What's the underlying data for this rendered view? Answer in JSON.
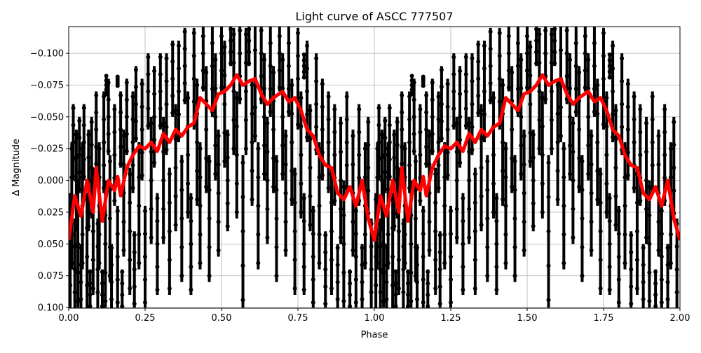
{
  "chart_data": {
    "type": "scatter",
    "title": "Light curve of ASCC 777507",
    "xlabel": "Phase",
    "ylabel": "Δ Magnitude",
    "xlim": [
      0.0,
      2.0
    ],
    "ylim": [
      0.1005,
      -0.121
    ],
    "y_inverted": true,
    "grid": true,
    "xticks": [
      "0.00",
      "0.25",
      "0.50",
      "0.75",
      "1.00",
      "1.25",
      "1.50",
      "1.75",
      "2.00"
    ],
    "xtick_values": [
      0,
      0.25,
      0.5,
      0.75,
      1,
      1.25,
      1.5,
      1.75,
      2
    ],
    "yticks": [
      "−0.100",
      "−0.075",
      "−0.050",
      "−0.025",
      "0.000",
      "0.025",
      "0.050",
      "0.075",
      "0.100"
    ],
    "ytick_values": [
      -0.1,
      -0.075,
      -0.05,
      -0.025,
      0,
      0.025,
      0.05,
      0.075,
      0.1
    ],
    "colors": {
      "points": "#000000",
      "model": "#ff0000",
      "grid": "#b0b0b0"
    },
    "points_note_phase_repeat": "phase 0–1 shown twice (0–1 and 1–2)",
    "points": [
      [
        0.005,
        0.06,
        0.05
      ],
      [
        0.01,
        0.02,
        0.05
      ],
      [
        0.015,
        -0.03,
        0.03
      ],
      [
        0.02,
        0.07,
        0.04
      ],
      [
        0.025,
        0.0,
        0.04
      ],
      [
        0.03,
        0.05,
        0.05
      ],
      [
        0.035,
        -0.02,
        0.03
      ],
      [
        0.04,
        0.08,
        0.03
      ],
      [
        0.045,
        0.02,
        0.05
      ],
      [
        0.05,
        -0.03,
        0.03
      ],
      [
        0.06,
        0.06,
        0.05
      ],
      [
        0.065,
        0.0,
        0.04
      ],
      [
        0.07,
        0.09,
        0.02
      ],
      [
        0.075,
        -0.01,
        0.04
      ],
      [
        0.08,
        0.04,
        0.05
      ],
      [
        0.09,
        -0.04,
        0.03
      ],
      [
        0.095,
        0.07,
        0.04
      ],
      [
        0.1,
        0.02,
        0.05
      ],
      [
        0.11,
        0.09,
        0.02
      ],
      [
        0.115,
        -0.03,
        0.04
      ],
      [
        0.12,
        0.05,
        0.05
      ],
      [
        0.13,
        -0.05,
        0.03
      ],
      [
        0.135,
        0.03,
        0.05
      ],
      [
        0.14,
        0.08,
        0.03
      ],
      [
        0.15,
        -0.02,
        0.04
      ],
      [
        0.16,
        0.06,
        0.04
      ],
      [
        0.17,
        -0.04,
        0.03
      ],
      [
        0.175,
        0.09,
        0.02
      ],
      [
        0.18,
        0.01,
        0.05
      ],
      [
        0.19,
        -0.05,
        0.03
      ],
      [
        0.2,
        0.04,
        0.05
      ],
      [
        0.21,
        -0.03,
        0.04
      ],
      [
        0.215,
        0.07,
        0.03
      ],
      [
        0.22,
        -0.06,
        0.03
      ],
      [
        0.23,
        0.02,
        0.05
      ],
      [
        0.24,
        -0.04,
        0.04
      ],
      [
        0.25,
        0.06,
        0.04
      ],
      [
        0.26,
        -0.07,
        0.03
      ],
      [
        0.27,
        0.0,
        0.05
      ],
      [
        0.28,
        -0.05,
        0.04
      ],
      [
        0.29,
        0.05,
        0.04
      ],
      [
        0.3,
        -0.07,
        0.03
      ],
      [
        0.31,
        0.0,
        0.05
      ],
      [
        0.32,
        -0.06,
        0.04
      ],
      [
        0.33,
        0.04,
        0.05
      ],
      [
        0.34,
        -0.08,
        0.03
      ],
      [
        0.35,
        -0.01,
        0.05
      ],
      [
        0.36,
        -0.07,
        0.04
      ],
      [
        0.37,
        0.03,
        0.05
      ],
      [
        0.38,
        -0.09,
        0.03
      ],
      [
        0.39,
        -0.02,
        0.05
      ],
      [
        0.4,
        0.05,
        0.04
      ],
      [
        0.41,
        -0.08,
        0.04
      ],
      [
        0.42,
        -0.03,
        0.05
      ],
      [
        0.43,
        0.02,
        0.05
      ],
      [
        0.44,
        -0.1,
        0.03
      ],
      [
        0.45,
        -0.04,
        0.05
      ],
      [
        0.46,
        0.03,
        0.05
      ],
      [
        0.47,
        -0.09,
        0.04
      ],
      [
        0.48,
        -0.05,
        0.05
      ],
      [
        0.49,
        0.01,
        0.05
      ],
      [
        0.5,
        -0.1,
        0.03
      ],
      [
        0.51,
        -0.06,
        0.05
      ],
      [
        0.52,
        0.0,
        0.04
      ],
      [
        0.53,
        -0.11,
        0.02
      ],
      [
        0.54,
        -0.07,
        0.05
      ],
      [
        0.55,
        -0.02,
        0.05
      ],
      [
        0.56,
        -0.1,
        0.04
      ],
      [
        0.57,
        0.04,
        0.06
      ],
      [
        0.58,
        -0.07,
        0.05
      ],
      [
        0.59,
        -0.11,
        0.02
      ],
      [
        0.6,
        -0.03,
        0.05
      ],
      [
        0.61,
        -0.08,
        0.05
      ],
      [
        0.62,
        0.02,
        0.05
      ],
      [
        0.63,
        -0.1,
        0.04
      ],
      [
        0.64,
        -0.05,
        0.05
      ],
      [
        0.65,
        0.0,
        0.05
      ],
      [
        0.66,
        -0.09,
        0.04
      ],
      [
        0.67,
        -0.04,
        0.05
      ],
      [
        0.68,
        0.03,
        0.05
      ],
      [
        0.69,
        -0.1,
        0.03
      ],
      [
        0.7,
        -0.05,
        0.05
      ],
      [
        0.71,
        0.01,
        0.05
      ],
      [
        0.72,
        -0.09,
        0.04
      ],
      [
        0.73,
        -0.03,
        0.05
      ],
      [
        0.74,
        0.04,
        0.05
      ],
      [
        0.75,
        -0.08,
        0.04
      ],
      [
        0.76,
        -0.02,
        0.05
      ],
      [
        0.77,
        0.05,
        0.04
      ],
      [
        0.78,
        -0.07,
        0.04
      ],
      [
        0.79,
        -0.01,
        0.05
      ],
      [
        0.8,
        0.06,
        0.04
      ],
      [
        0.81,
        -0.06,
        0.04
      ],
      [
        0.82,
        0.02,
        0.05
      ],
      [
        0.83,
        -0.04,
        0.04
      ],
      [
        0.84,
        0.07,
        0.03
      ],
      [
        0.85,
        -0.03,
        0.04
      ],
      [
        0.86,
        0.04,
        0.05
      ],
      [
        0.87,
        -0.02,
        0.04
      ],
      [
        0.88,
        0.08,
        0.03
      ],
      [
        0.89,
        0.0,
        0.05
      ],
      [
        0.9,
        0.05,
        0.05
      ],
      [
        0.91,
        -0.03,
        0.04
      ],
      [
        0.92,
        0.09,
        0.02
      ],
      [
        0.93,
        0.01,
        0.05
      ],
      [
        0.94,
        0.06,
        0.04
      ],
      [
        0.95,
        -0.02,
        0.04
      ],
      [
        0.96,
        0.08,
        0.03
      ],
      [
        0.97,
        0.02,
        0.05
      ],
      [
        0.98,
        -0.01,
        0.04
      ],
      [
        0.99,
        0.07,
        0.04
      ],
      [
        0.123,
        -0.075,
        0.008
      ],
      [
        0.16,
        -0.078,
        0.004
      ],
      [
        0.77,
        -0.09,
        0.01
      ]
    ],
    "model": {
      "x": [
        0.0,
        0.02,
        0.04,
        0.06,
        0.08,
        0.09,
        0.11,
        0.13,
        0.15,
        0.16,
        0.17,
        0.19,
        0.21,
        0.23,
        0.25,
        0.27,
        0.29,
        0.31,
        0.33,
        0.35,
        0.37,
        0.39,
        0.41,
        0.43,
        0.45,
        0.47,
        0.49,
        0.51,
        0.53,
        0.55,
        0.57,
        0.59,
        0.61,
        0.63,
        0.65,
        0.67,
        0.7,
        0.72,
        0.74,
        0.76,
        0.78,
        0.8,
        0.82,
        0.84,
        0.86,
        0.88,
        0.9,
        0.92,
        0.94,
        0.96,
        0.98,
        1.0
      ],
      "y": [
        0.047,
        0.012,
        0.028,
        0.0,
        0.025,
        -0.01,
        0.032,
        0.0,
        0.008,
        -0.003,
        0.012,
        -0.01,
        -0.02,
        -0.027,
        -0.025,
        -0.03,
        -0.023,
        -0.037,
        -0.03,
        -0.04,
        -0.035,
        -0.042,
        -0.045,
        -0.065,
        -0.06,
        -0.055,
        -0.068,
        -0.07,
        -0.075,
        -0.083,
        -0.075,
        -0.078,
        -0.08,
        -0.068,
        -0.06,
        -0.065,
        -0.07,
        -0.062,
        -0.065,
        -0.055,
        -0.04,
        -0.035,
        -0.02,
        -0.012,
        -0.01,
        0.01,
        0.015,
        0.005,
        0.02,
        0.0,
        0.03,
        0.047
      ]
    }
  }
}
